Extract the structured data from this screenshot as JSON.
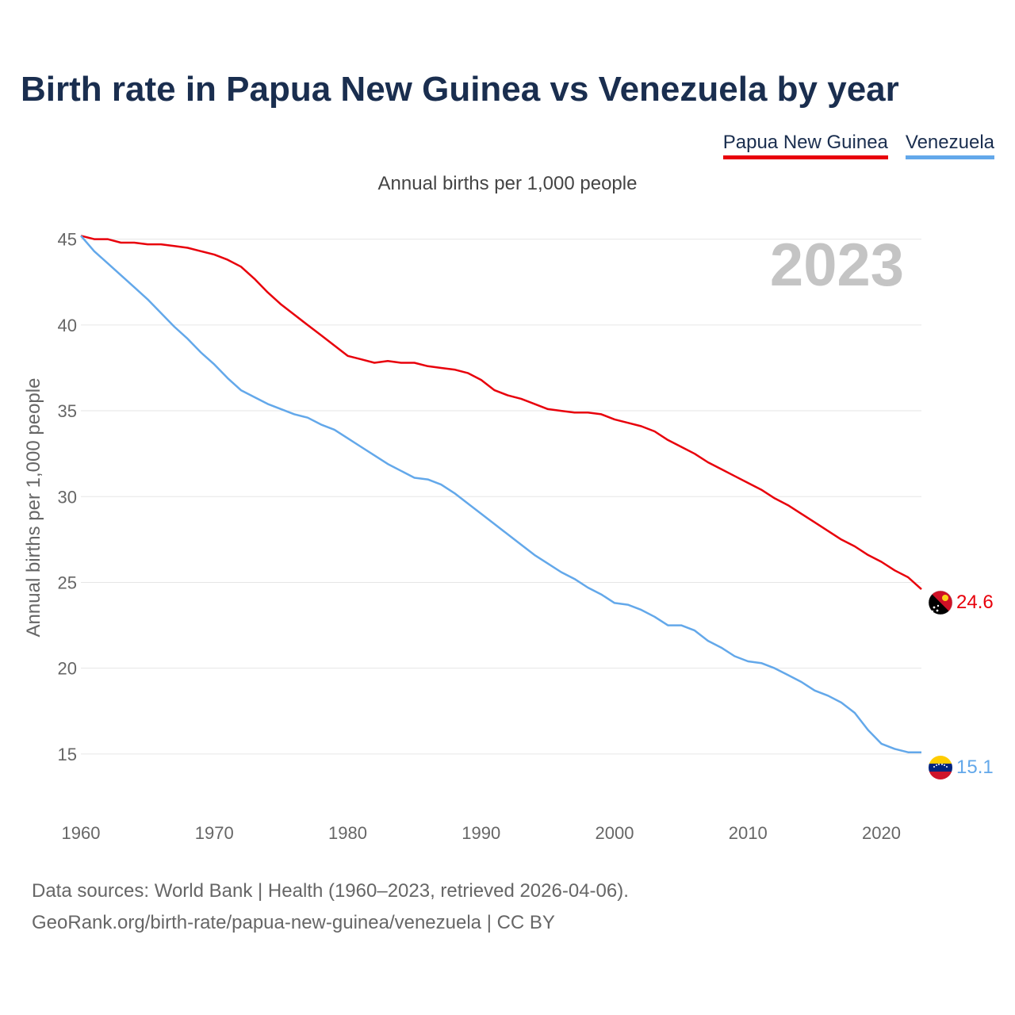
{
  "chart_data": {
    "type": "line",
    "title": "Birth rate in Papua New Guinea vs Venezuela by year",
    "subtitle": "Annual births per 1,000 people",
    "ylabel": "Annual births per 1,000 people",
    "xlabel": "",
    "year_label": "2023",
    "xlim": [
      1960,
      2023
    ],
    "ylim": [
      12.5,
      46
    ],
    "x_ticks": [
      1960,
      1970,
      1980,
      1990,
      2000,
      2010,
      2020
    ],
    "y_ticks": [
      15,
      20,
      25,
      30,
      35,
      40,
      45
    ],
    "x": [
      1960,
      1961,
      1962,
      1963,
      1964,
      1965,
      1966,
      1967,
      1968,
      1969,
      1970,
      1971,
      1972,
      1973,
      1974,
      1975,
      1976,
      1977,
      1978,
      1979,
      1980,
      1981,
      1982,
      1983,
      1984,
      1985,
      1986,
      1987,
      1988,
      1989,
      1990,
      1991,
      1992,
      1993,
      1994,
      1995,
      1996,
      1997,
      1998,
      1999,
      2000,
      2001,
      2002,
      2003,
      2004,
      2005,
      2006,
      2007,
      2008,
      2009,
      2010,
      2011,
      2012,
      2013,
      2014,
      2015,
      2016,
      2017,
      2018,
      2019,
      2020,
      2021,
      2022,
      2023
    ],
    "series": [
      {
        "name": "Papua New Guinea",
        "color": "#e8000b",
        "end_label": "24.6",
        "values": [
          45.2,
          45.0,
          45.0,
          44.8,
          44.8,
          44.7,
          44.7,
          44.6,
          44.5,
          44.3,
          44.1,
          43.8,
          43.4,
          42.7,
          41.9,
          41.2,
          40.6,
          40.0,
          39.4,
          38.8,
          38.2,
          38.0,
          37.8,
          37.9,
          37.8,
          37.8,
          37.6,
          37.5,
          37.4,
          37.2,
          36.8,
          36.2,
          35.9,
          35.7,
          35.4,
          35.1,
          35.0,
          34.9,
          34.9,
          34.8,
          34.5,
          34.3,
          34.1,
          33.8,
          33.3,
          32.9,
          32.5,
          32.0,
          31.6,
          31.2,
          30.8,
          30.4,
          29.9,
          29.5,
          29.0,
          28.5,
          28.0,
          27.5,
          27.1,
          26.6,
          26.2,
          25.7,
          25.3,
          24.6
        ]
      },
      {
        "name": "Venezuela",
        "color": "#63a8ea",
        "end_label": "15.1",
        "values": [
          45.2,
          44.3,
          43.6,
          42.9,
          42.2,
          41.5,
          40.7,
          39.9,
          39.2,
          38.4,
          37.7,
          36.9,
          36.2,
          35.8,
          35.4,
          35.1,
          34.8,
          34.6,
          34.2,
          33.9,
          33.4,
          32.9,
          32.4,
          31.9,
          31.5,
          31.1,
          31.0,
          30.7,
          30.2,
          29.6,
          29.0,
          28.4,
          27.8,
          27.2,
          26.6,
          26.1,
          25.6,
          25.2,
          24.7,
          24.3,
          23.8,
          23.7,
          23.4,
          23.0,
          22.5,
          22.5,
          22.2,
          21.6,
          21.2,
          20.7,
          20.4,
          20.3,
          20.0,
          19.6,
          19.2,
          18.7,
          18.4,
          18.0,
          17.4,
          16.4,
          15.6,
          15.3,
          15.1,
          15.1
        ]
      }
    ]
  },
  "footer": {
    "line1": "Data sources: World Bank | Health (1960–2023, retrieved 2026-04-06).",
    "line2": "GeoRank.org/birth-rate/papua-new-guinea/venezuela | CC BY"
  },
  "icons": {
    "png_flag": "papua-new-guinea-flag-icon",
    "ven_flag": "venezuela-flag-icon"
  }
}
